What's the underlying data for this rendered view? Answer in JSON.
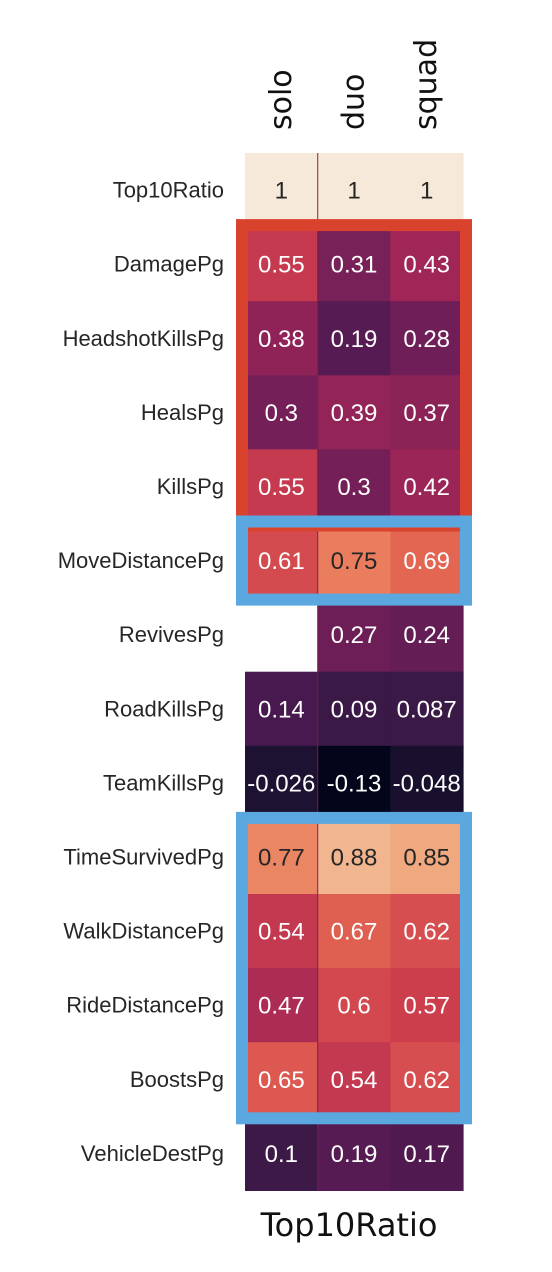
{
  "chart_data": {
    "type": "heatmap",
    "title": "",
    "xlabel": "Top10Ratio",
    "ylabel": "",
    "columns": [
      "solo",
      "duo",
      "squad"
    ],
    "rows": [
      "Top10Ratio",
      "DamagePg",
      "HeadshotKillsPg",
      "HealsPg",
      "KillsPg",
      "MoveDistancePg",
      "RevivesPg",
      "RoadKillsPg",
      "TeamKillsPg",
      "TimeSurvivedPg",
      "WalkDistancePg",
      "RideDistancePg",
      "BoostsPg",
      "VehicleDestPg"
    ],
    "values": [
      [
        1,
        1,
        1
      ],
      [
        0.55,
        0.31,
        0.43
      ],
      [
        0.38,
        0.19,
        0.28
      ],
      [
        0.3,
        0.39,
        0.37
      ],
      [
        0.55,
        0.3,
        0.42
      ],
      [
        0.61,
        0.75,
        0.69
      ],
      [
        null,
        0.27,
        0.24
      ],
      [
        0.14,
        0.09,
        0.087
      ],
      [
        -0.026,
        -0.13,
        -0.048
      ],
      [
        0.77,
        0.88,
        0.85
      ],
      [
        0.54,
        0.67,
        0.62
      ],
      [
        0.47,
        0.6,
        0.57
      ],
      [
        0.65,
        0.54,
        0.62
      ],
      [
        0.1,
        0.19,
        0.17
      ]
    ],
    "labels": [
      [
        "1",
        "1",
        "1"
      ],
      [
        "0.55",
        "0.31",
        "0.43"
      ],
      [
        "0.38",
        "0.19",
        "0.28"
      ],
      [
        "0.3",
        "0.39",
        "0.37"
      ],
      [
        "0.55",
        "0.3",
        "0.42"
      ],
      [
        "0.61",
        "0.75",
        "0.69"
      ],
      [
        "",
        "0.27",
        "0.24"
      ],
      [
        "0.14",
        "0.09",
        "0.087"
      ],
      [
        "-0.026",
        "-0.13",
        "-0.048"
      ],
      [
        "0.77",
        "0.88",
        "0.85"
      ],
      [
        "0.54",
        "0.67",
        "0.62"
      ],
      [
        "0.47",
        "0.6",
        "0.57"
      ],
      [
        "0.65",
        "0.54",
        "0.62"
      ],
      [
        "0.1",
        "0.19",
        "0.17"
      ]
    ],
    "colormap": "rocket",
    "value_range": [
      -0.13,
      1
    ],
    "colorbar": false,
    "highlight_groups": [
      {
        "color": "#d9432e",
        "rows": [
          "DamagePg",
          "HeadshotKillsPg",
          "HealsPg",
          "KillsPg"
        ]
      },
      {
        "color": "#5ba7e0",
        "rows": [
          "MoveDistancePg"
        ]
      },
      {
        "color": "#5ba7e0",
        "rows": [
          "TimeSurvivedPg",
          "WalkDistancePg",
          "RideDistancePg",
          "BoostsPg"
        ]
      }
    ]
  }
}
